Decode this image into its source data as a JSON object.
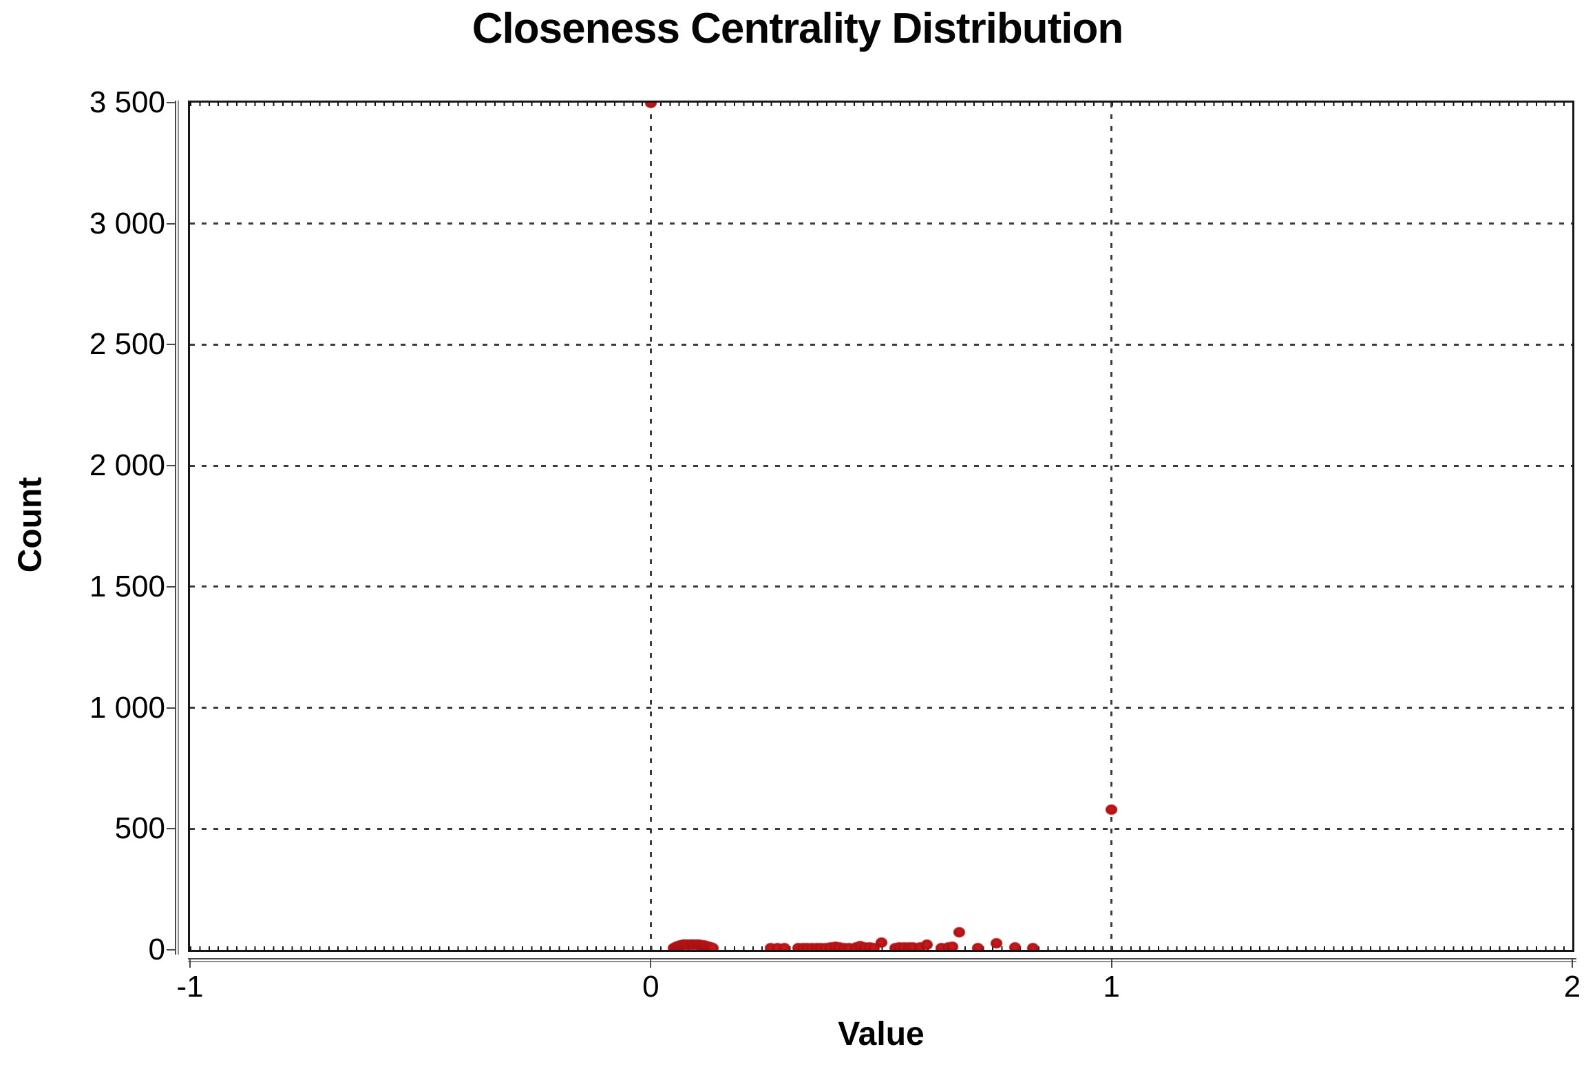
{
  "chart_data": {
    "type": "scatter",
    "title": "Closeness Centrality Distribution",
    "xlabel": "Value",
    "ylabel": "Count",
    "xlim": [
      -1,
      2
    ],
    "ylim": [
      0,
      3500
    ],
    "x_ticks": [
      -1,
      0,
      1,
      2
    ],
    "x_tick_labels": [
      "-1",
      "0",
      "1",
      "2"
    ],
    "y_ticks": [
      0,
      500,
      1000,
      1500,
      2000,
      2500,
      3000,
      3500
    ],
    "y_tick_labels": [
      "0",
      "500",
      "1 000",
      "1 500",
      "2 000",
      "2 500",
      "3 000",
      "3 500"
    ],
    "grid": {
      "style": "dashed",
      "vertical_at": [
        0,
        1
      ],
      "horizontal_at": [
        500,
        1000,
        1500,
        2000,
        2500,
        3000
      ]
    },
    "legend": "none",
    "point_color": "#b01215",
    "series": [
      {
        "name": "Closeness Centrality",
        "points": [
          [
            0.0,
            3500
          ],
          [
            0.05,
            6
          ],
          [
            0.055,
            12
          ],
          [
            0.06,
            17
          ],
          [
            0.065,
            19
          ],
          [
            0.07,
            20
          ],
          [
            0.075,
            20
          ],
          [
            0.08,
            20
          ],
          [
            0.085,
            20
          ],
          [
            0.09,
            20
          ],
          [
            0.095,
            20
          ],
          [
            0.1,
            20
          ],
          [
            0.105,
            20
          ],
          [
            0.11,
            19
          ],
          [
            0.115,
            18
          ],
          [
            0.12,
            17
          ],
          [
            0.125,
            14
          ],
          [
            0.13,
            10
          ],
          [
            0.135,
            7
          ],
          [
            0.26,
            6
          ],
          [
            0.275,
            8
          ],
          [
            0.29,
            6
          ],
          [
            0.32,
            6
          ],
          [
            0.33,
            7
          ],
          [
            0.34,
            7
          ],
          [
            0.35,
            8
          ],
          [
            0.36,
            8
          ],
          [
            0.37,
            8
          ],
          [
            0.38,
            8
          ],
          [
            0.39,
            9
          ],
          [
            0.4,
            14
          ],
          [
            0.41,
            9
          ],
          [
            0.42,
            8
          ],
          [
            0.43,
            8
          ],
          [
            0.445,
            10
          ],
          [
            0.455,
            16
          ],
          [
            0.465,
            10
          ],
          [
            0.475,
            9
          ],
          [
            0.485,
            8
          ],
          [
            0.5,
            30
          ],
          [
            0.53,
            8
          ],
          [
            0.54,
            9
          ],
          [
            0.55,
            10
          ],
          [
            0.56,
            10
          ],
          [
            0.57,
            9
          ],
          [
            0.585,
            9
          ],
          [
            0.6,
            20
          ],
          [
            0.63,
            8
          ],
          [
            0.645,
            10
          ],
          [
            0.655,
            12
          ],
          [
            0.67,
            72
          ],
          [
            0.71,
            8
          ],
          [
            0.75,
            28
          ],
          [
            0.79,
            10
          ],
          [
            0.83,
            8
          ],
          [
            1.0,
            580
          ]
        ]
      }
    ]
  }
}
